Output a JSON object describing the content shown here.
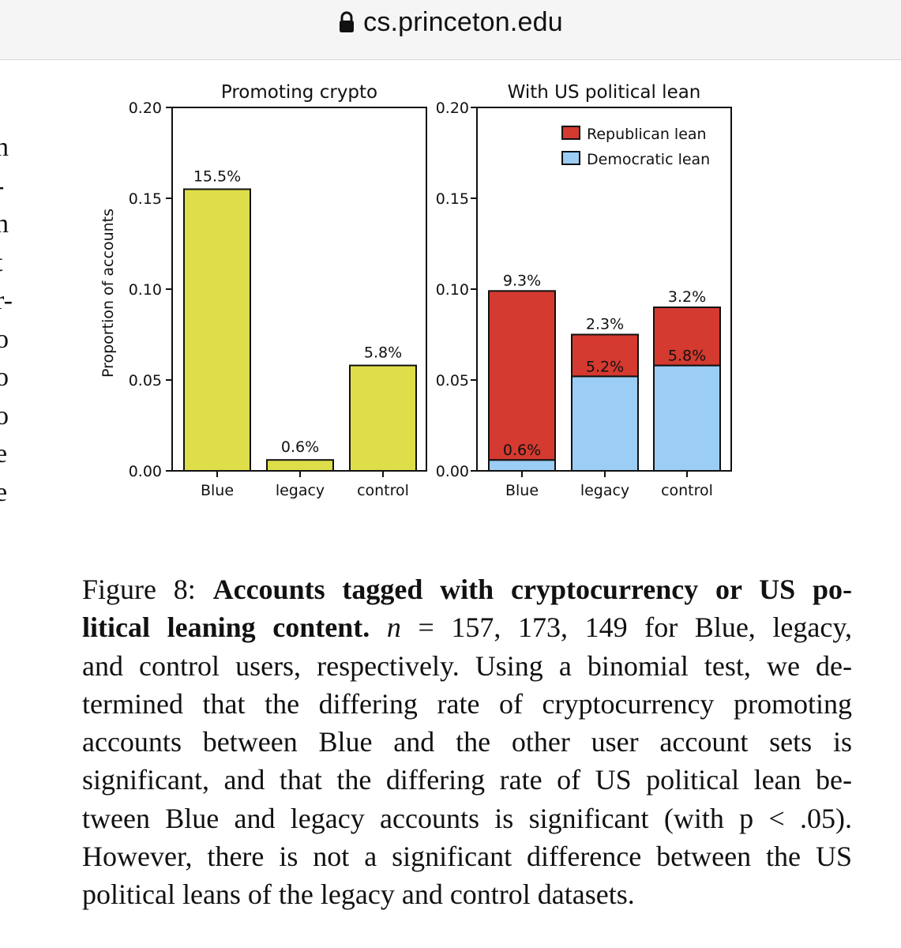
{
  "browser": {
    "url": "cs.princeton.edu",
    "lock_icon": "lock-icon"
  },
  "margin_fragments": [
    "n",
    "-",
    "n",
    "t",
    "r-",
    "o",
    "o",
    "o",
    "e",
    "e"
  ],
  "chart_data": [
    {
      "type": "bar",
      "title": "Promoting crypto",
      "ylabel": "Proportion of accounts",
      "xlabel": "",
      "categories": [
        "Blue",
        "legacy",
        "control"
      ],
      "values": [
        0.155,
        0.006,
        0.058
      ],
      "data_labels": [
        "15.5%",
        "0.6%",
        "5.8%"
      ],
      "ylim": [
        0,
        0.2
      ],
      "yticks": [
        "0.00",
        "0.05",
        "0.10",
        "0.15",
        "0.20"
      ],
      "color": "#dede4a",
      "grid": false
    },
    {
      "type": "bar",
      "stacked": true,
      "title": "With US political lean",
      "ylabel": "",
      "categories": [
        "Blue",
        "legacy",
        "control"
      ],
      "series": [
        {
          "name": "Democratic lean",
          "values": [
            0.006,
            0.052,
            0.058
          ],
          "data_labels": [
            "0.6%",
            "5.2%",
            "5.8%"
          ],
          "color": "#9ccdf4"
        },
        {
          "name": "Republican lean",
          "values": [
            0.093,
            0.023,
            0.032
          ],
          "data_labels": [
            "9.3%",
            "2.3%",
            "3.2%"
          ],
          "color": "#d43a30"
        }
      ],
      "legend": [
        "Republican lean",
        "Democratic lean"
      ],
      "legend_position": "top-right",
      "ylim": [
        0,
        0.2
      ],
      "yticks": [
        "0.00",
        "0.05",
        "0.10",
        "0.15",
        "0.20"
      ],
      "grid": false
    }
  ],
  "caption": {
    "lines": [
      [
        {
          "t": "Figure 8: "
        },
        {
          "t": "Accounts tagged with cryptocurrency or US po-",
          "b": true
        }
      ],
      [
        {
          "t": "litical leaning content.",
          "b": true
        },
        {
          "t": " "
        },
        {
          "t": "n",
          "i": true
        },
        {
          "t": " = 157, 173, 149 for Blue, legacy,"
        }
      ],
      [
        {
          "t": "and control users, respectively. Using a binomial test, we de-"
        }
      ],
      [
        {
          "t": "termined that the differing rate of cryptocurrency promoting"
        }
      ],
      [
        {
          "t": "accounts between Blue and the other user account sets is"
        }
      ],
      [
        {
          "t": "significant, and that the differing rate of US political lean be-"
        }
      ],
      [
        {
          "t": "tween Blue and legacy accounts is significant (with p < .05)."
        }
      ],
      [
        {
          "t": "However, there is not a significant difference between the US"
        }
      ],
      [
        {
          "t": "political leans of the legacy and control datasets."
        }
      ]
    ]
  }
}
